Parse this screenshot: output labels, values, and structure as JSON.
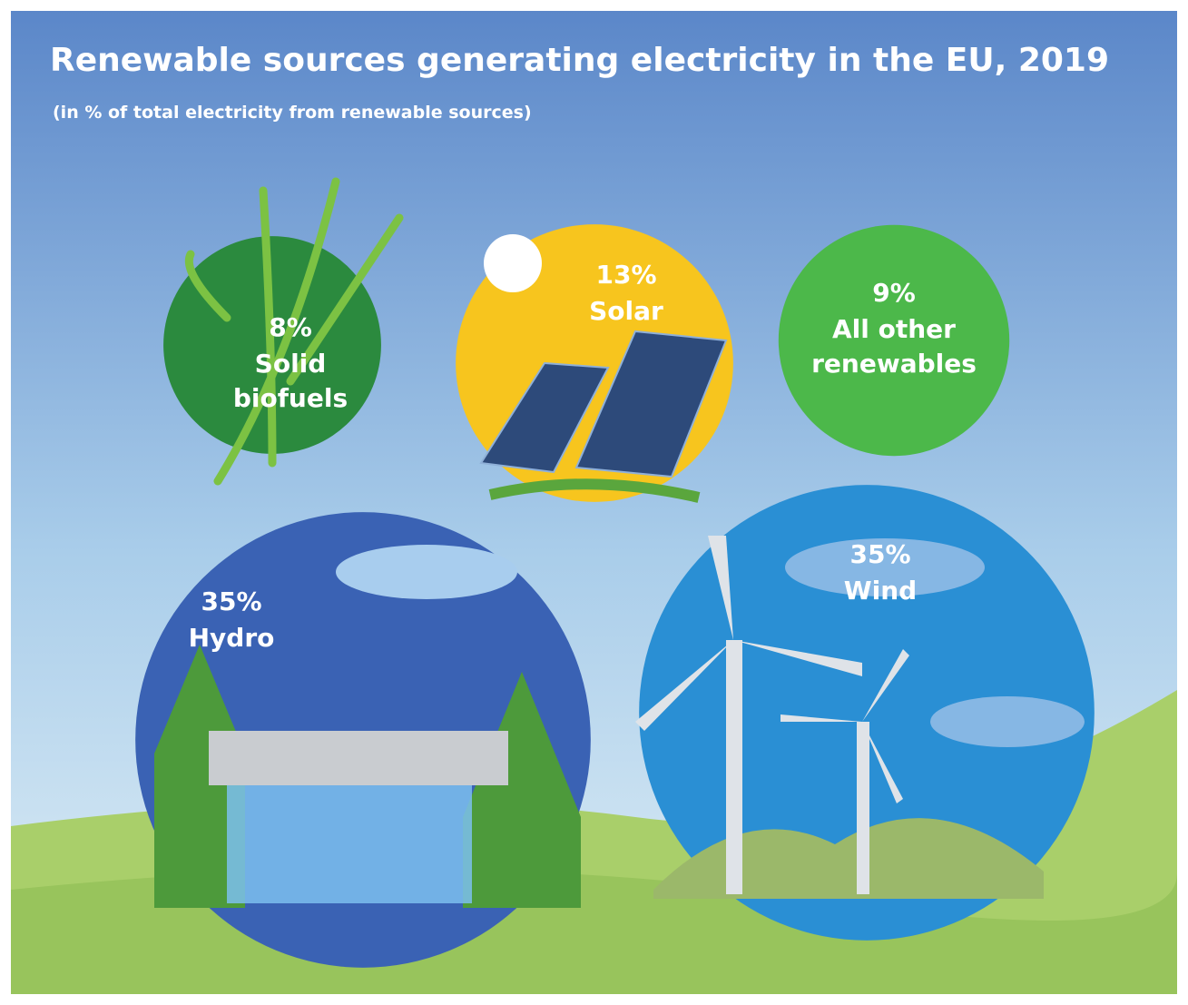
{
  "chart_data": {
    "type": "bubble",
    "title": "Renewable sources generating electricity in the EU, 2019",
    "subtitle": "(in % of total electricity from renewable sources)",
    "categories": [
      "Solid biofuels",
      "Solar",
      "All other renewables",
      "Hydro",
      "Wind"
    ],
    "values": [
      8,
      13,
      9,
      35,
      35
    ],
    "value_labels": [
      "8%",
      "13%",
      "9%",
      "35%",
      "35%"
    ],
    "colors": [
      "#2b8a3e",
      "#f7c51e",
      "#4cb84a",
      "#3a62b4",
      "#2a8fd4"
    ]
  }
}
